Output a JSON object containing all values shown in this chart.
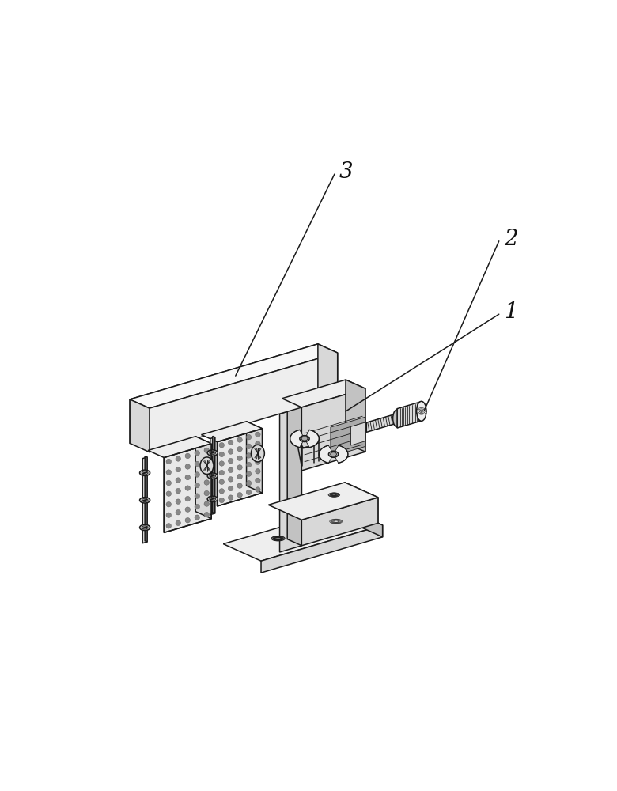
{
  "bg_color": "#ffffff",
  "line_color": "#1a1a1a",
  "face_white": "#f8f8f8",
  "face_light": "#eeeeee",
  "face_mid": "#d8d8d8",
  "face_dark": "#c2c2c2",
  "face_darker": "#aaaaaa",
  "dot_fill": "#888888",
  "dot_edge": "#555555",
  "label_1": "1",
  "label_2": "2",
  "label_3": "3",
  "label_fontsize": 20,
  "label_color": "#111111",
  "lw_main": 1.1,
  "lw_thin": 0.6,
  "lw_med": 0.85
}
